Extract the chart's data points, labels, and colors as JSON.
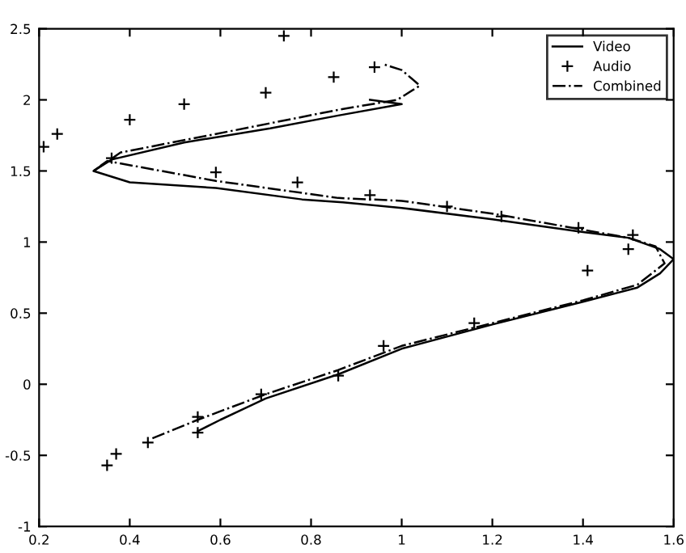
{
  "chart_data": {
    "type": "line",
    "xlim": [
      0.2,
      1.6
    ],
    "ylim": [
      -1,
      2.5
    ],
    "xticks": [
      0.2,
      0.4,
      0.6,
      0.8,
      1,
      1.2,
      1.4,
      1.6
    ],
    "yticks": [
      -1,
      -0.5,
      0,
      0.5,
      1,
      1.5,
      2,
      2.5
    ],
    "grid": false,
    "legend": "top right",
    "series": [
      {
        "name": "Video",
        "color": "#000000",
        "line_style": "solid",
        "marker": "none",
        "x": [
          0.55,
          0.6,
          0.7,
          0.86,
          1.0,
          1.2,
          1.4,
          1.52,
          1.57,
          1.6,
          1.57,
          1.5,
          1.4,
          1.2,
          1.0,
          0.87,
          0.78,
          0.59,
          0.4,
          0.32,
          0.36,
          0.52,
          0.71,
          0.86,
          1.0,
          0.93
        ],
        "values": [
          -0.33,
          -0.25,
          -0.1,
          0.07,
          0.25,
          0.42,
          0.58,
          0.68,
          0.78,
          0.88,
          0.95,
          1.03,
          1.07,
          1.16,
          1.24,
          1.28,
          1.3,
          1.38,
          1.42,
          1.5,
          1.58,
          1.7,
          1.8,
          1.89,
          1.97,
          2.0
        ]
      },
      {
        "name": "Audio",
        "type": "scatter",
        "color": "#000000",
        "marker": "cross",
        "x": [
          0.21,
          0.24,
          0.4,
          0.52,
          0.7,
          0.74,
          0.85,
          0.94,
          0.36,
          0.59,
          0.77,
          0.93,
          1.1,
          1.22,
          1.39,
          1.51,
          1.5,
          1.41,
          1.16,
          0.96,
          0.86,
          0.69,
          0.55,
          0.55,
          0.44,
          0.37,
          0.35
        ],
        "values": [
          1.67,
          1.76,
          1.86,
          1.97,
          2.05,
          2.45,
          2.16,
          2.23,
          1.59,
          1.49,
          1.42,
          1.33,
          1.25,
          1.18,
          1.1,
          1.05,
          0.95,
          0.8,
          0.43,
          0.27,
          0.06,
          -0.07,
          -0.23,
          -0.34,
          -0.41,
          -0.49,
          -0.57
        ]
      },
      {
        "name": "Combined",
        "color": "#000000",
        "line_style": "dashdot",
        "marker": "none",
        "x": [
          0.45,
          0.55,
          0.7,
          0.86,
          1.0,
          1.2,
          1.4,
          1.52,
          1.58,
          1.56,
          1.5,
          1.2,
          1.0,
          0.86,
          0.59,
          0.35,
          0.32,
          0.38,
          0.59,
          0.86,
          0.99,
          1.04,
          1.0,
          0.96
        ],
        "values": [
          -0.38,
          -0.25,
          -0.07,
          0.1,
          0.27,
          0.43,
          0.59,
          0.7,
          0.85,
          0.97,
          1.03,
          1.2,
          1.29,
          1.31,
          1.43,
          1.57,
          1.5,
          1.63,
          1.76,
          1.93,
          2.0,
          2.1,
          2.21,
          2.25
        ]
      }
    ]
  }
}
